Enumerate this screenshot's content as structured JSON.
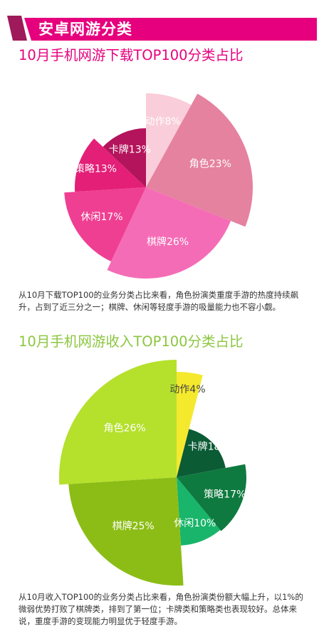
{
  "header": {
    "section_title": "安卓网游分类",
    "banner_color": "#e6007e",
    "accent_color": "#9e1a5a"
  },
  "chart1": {
    "title_color": "#e6007e",
    "text_color": "#ffffff",
    "description": "从10月下载TOP100的业务分类占比来看，角色扮演类重度手游的热度持续飙升，占到了近三分之一；棋牌、休闲等轻度手游的吸量能力也不容小觑。"
  },
  "chart2": {
    "title_color": "#8cc63f",
    "text_color": "#ffffff",
    "highlight_text_color": "#444444",
    "description": "从10月收入TOP100的业务分类占比来看，角色扮演类份额大幅上升，以1%的微弱优势打败了棋牌类，排到了第一位；卡牌类和策略类也表现较好。总体来说，重度手游的变现能力明显优于轻度手游。"
  },
  "chart_data": [
    {
      "type": "pie",
      "title": "10月手机网游下载TOP100分类占比",
      "unit": "%",
      "slices": [
        {
          "label": "动作",
          "value": 8,
          "color": "#f9cdd9"
        },
        {
          "label": "角色",
          "value": 23,
          "color": "#e5829f"
        },
        {
          "label": "棋牌",
          "value": 26,
          "color": "#f56cb6"
        },
        {
          "label": "休闲",
          "value": 17,
          "color": "#ef3f92"
        },
        {
          "label": "策略",
          "value": 13,
          "color": "#e41f78"
        },
        {
          "label": "卡牌",
          "value": 13,
          "color": "#b4145c"
        }
      ]
    },
    {
      "type": "pie",
      "title": "10月手机网游收入TOP100分类占比",
      "unit": "%",
      "slices": [
        {
          "label": "动作",
          "value": 4,
          "color": "#f5e92e"
        },
        {
          "label": "卡牌",
          "value": 18,
          "color": "#0b5b35"
        },
        {
          "label": "策略",
          "value": 17,
          "color": "#0e7a3f"
        },
        {
          "label": "休闲",
          "value": 10,
          "color": "#18b56a"
        },
        {
          "label": "棋牌",
          "value": 25,
          "color": "#8cbd16"
        },
        {
          "label": "角色",
          "value": 26,
          "color": "#b5e02c"
        }
      ]
    }
  ]
}
